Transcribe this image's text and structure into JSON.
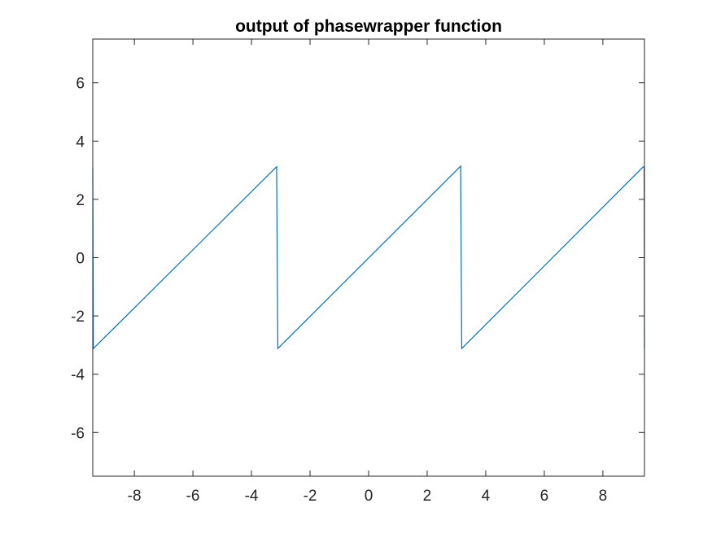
{
  "chart_data": {
    "type": "line",
    "title": "output of phasewrapper function",
    "xlabel": "",
    "ylabel": "",
    "xlim": [
      -9.42,
      9.42
    ],
    "ylim": [
      -7.5,
      7.5
    ],
    "xticks": [
      -8,
      -6,
      -4,
      -2,
      0,
      2,
      4,
      6,
      8
    ],
    "yticks": [
      -6,
      -4,
      -2,
      0,
      2,
      4,
      6
    ],
    "xtick_labels": [
      "-8",
      "-6",
      "-4",
      "-2",
      "0",
      "2",
      "4",
      "6",
      "8"
    ],
    "ytick_labels": [
      "-6",
      "-4",
      "-2",
      "0",
      "2",
      "4",
      "6"
    ],
    "grid": false,
    "box": true,
    "colors": {
      "series": "#0072BD",
      "axes": "#262626"
    },
    "series": [
      {
        "x": [
          -9.42,
          -9.4,
          -3.1416,
          -3.1,
          3.1416,
          3.18,
          9.38,
          9.41,
          9.42
        ],
        "y": [
          3.1,
          -3.12,
          3.12,
          -3.12,
          3.14,
          -3.12,
          3.12,
          3.1,
          -3.12
        ]
      }
    ]
  }
}
